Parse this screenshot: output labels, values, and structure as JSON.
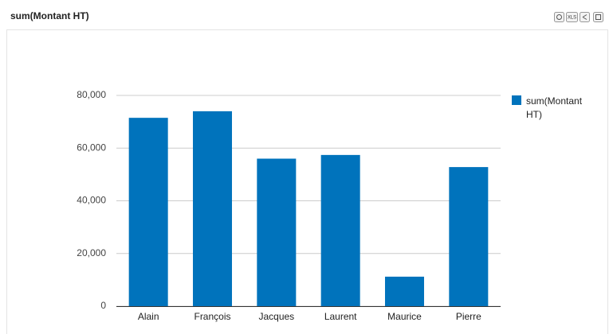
{
  "toolbar": {
    "export_label": "XLS"
  },
  "chart_data": {
    "type": "bar",
    "title": "sum(Montant HT)",
    "categories": [
      "Alain",
      "François",
      "Jacques",
      "Laurent",
      "Maurice",
      "Pierre"
    ],
    "series": [
      {
        "name": "sum(Montant HT)",
        "color": "#0073bc",
        "values": [
          71500,
          74000,
          56000,
          57400,
          11200,
          52800
        ]
      }
    ],
    "ylim": [
      0,
      80000
    ],
    "yticks": [
      0,
      {
        "value": 20000,
        "label": "20,000"
      },
      {
        "value": 40000,
        "label": "40,000"
      },
      {
        "value": 60000,
        "label": "60,000"
      },
      {
        "value": 80000,
        "label": "80,000"
      }
    ],
    "grid": true,
    "legend": "right"
  }
}
